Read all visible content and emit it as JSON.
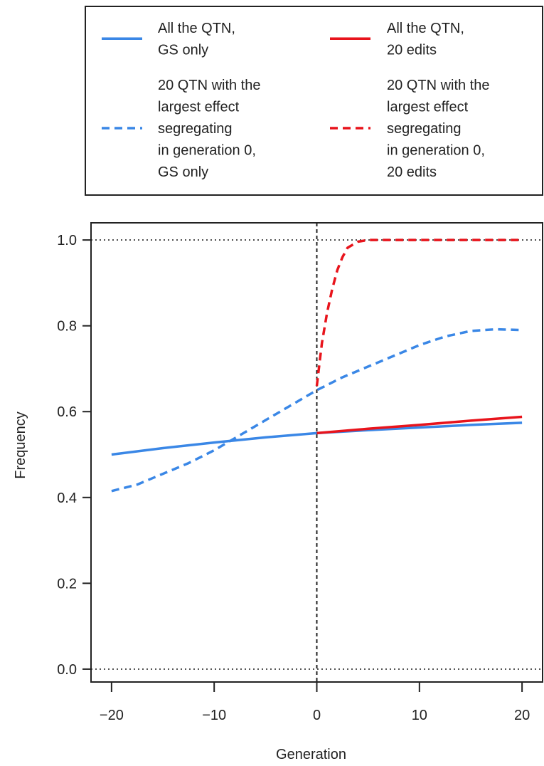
{
  "chart_data": {
    "type": "line",
    "title": "",
    "xlabel": "Generation",
    "ylabel": "Frequency",
    "xlim": [
      -22,
      22
    ],
    "ylim": [
      -0.03,
      1.04
    ],
    "x_ticks": [
      -20,
      -10,
      0,
      10,
      20
    ],
    "x_tick_labels": [
      "−20",
      "−10",
      "0",
      "10",
      "20"
    ],
    "y_ticks": [
      0.0,
      0.2,
      0.4,
      0.6,
      0.8,
      1.0
    ],
    "y_tick_labels": [
      "0.0",
      "0.2",
      "0.4",
      "0.6",
      "0.8",
      "1.0"
    ],
    "reference_lines": {
      "horizontal": [
        0.0,
        1.0
      ],
      "vertical": [
        0
      ],
      "style": "dotted"
    },
    "legend": {
      "placement": "top",
      "columns": 2
    },
    "series": [
      {
        "name": [
          "All the QTN,",
          "GS only"
        ],
        "color": "#3a87e6",
        "dash": "solid",
        "x": [
          -20,
          -15,
          -10,
          -5,
          0,
          5,
          10,
          15,
          20
        ],
        "y": [
          0.5,
          0.515,
          0.528,
          0.54,
          0.55,
          0.557,
          0.563,
          0.569,
          0.574
        ]
      },
      {
        "name": [
          "All the QTN,",
          "20 edits"
        ],
        "color": "#e8141c",
        "dash": "solid",
        "x": [
          0,
          5,
          10,
          15,
          20
        ],
        "y": [
          0.55,
          0.56,
          0.569,
          0.579,
          0.588
        ]
      },
      {
        "name": [
          "20 QTN with the",
          "largest effect",
          "segregating",
          "in generation 0,",
          "GS only"
        ],
        "color": "#3a87e6",
        "dash": "dashed",
        "x": [
          -20,
          -17.5,
          -15,
          -12.5,
          -10,
          -7.5,
          -5,
          -2.5,
          0,
          2.5,
          5,
          7.5,
          10,
          12.5,
          15,
          17.5,
          20
        ],
        "y": [
          0.415,
          0.43,
          0.455,
          0.48,
          0.51,
          0.545,
          0.58,
          0.615,
          0.65,
          0.68,
          0.705,
          0.73,
          0.755,
          0.775,
          0.788,
          0.792,
          0.79
        ]
      },
      {
        "name": [
          "20 QTN with the",
          "largest effect",
          "segregating",
          "in generation 0,",
          "20 edits"
        ],
        "color": "#e8141c",
        "dash": "dashed",
        "x": [
          0,
          0.5,
          1,
          1.5,
          2,
          2.5,
          3,
          4,
          5,
          6,
          8,
          10,
          15,
          20
        ],
        "y": [
          0.66,
          0.76,
          0.83,
          0.885,
          0.93,
          0.96,
          0.982,
          0.996,
          1.0,
          1.0,
          1.0,
          1.0,
          1.0,
          1.0
        ]
      }
    ]
  }
}
